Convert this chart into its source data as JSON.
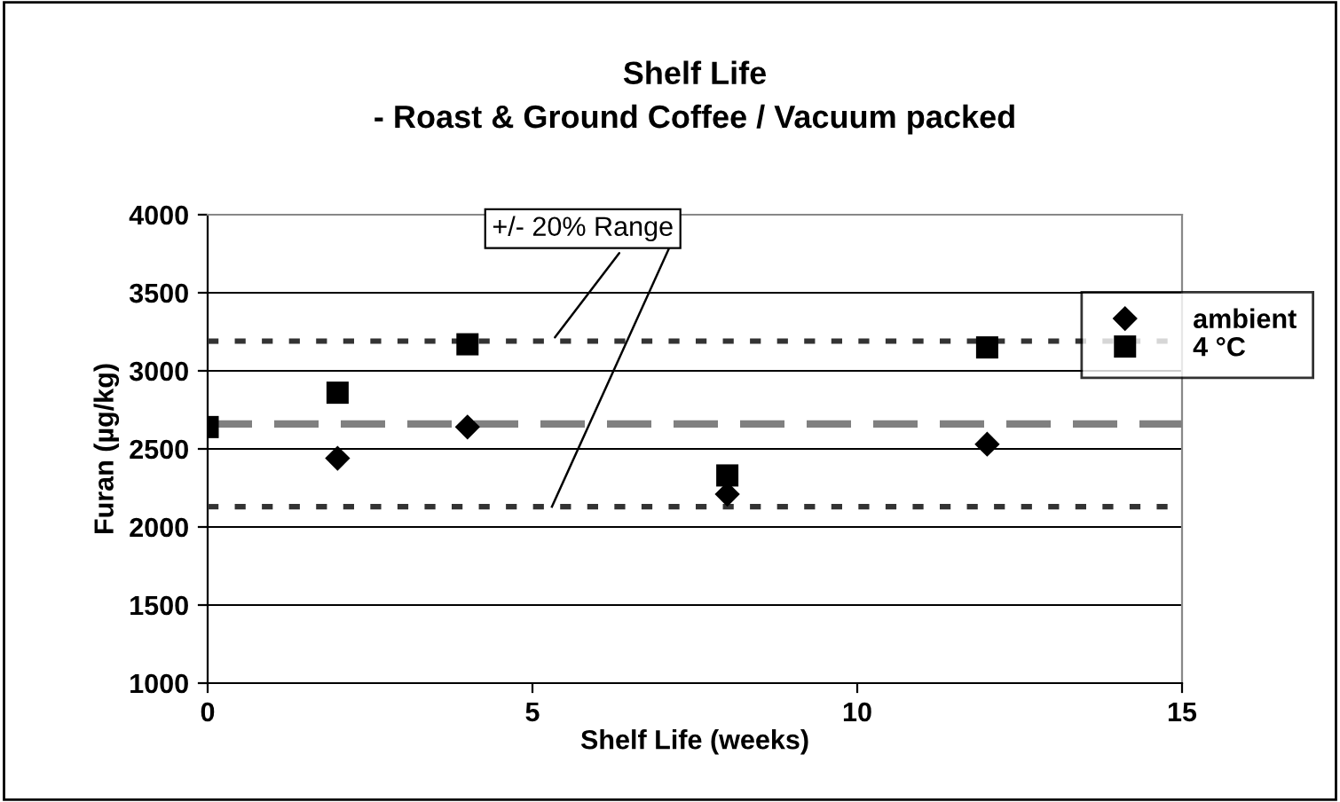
{
  "chart_data": {
    "type": "scatter",
    "title": "Shelf Life\n- Roast & Ground Coffee / Vacuum packed",
    "xlabel": "Shelf Life (weeks)",
    "ylabel": "Furan (µg/kg)",
    "x": [
      0,
      2,
      4,
      8,
      12
    ],
    "series": [
      {
        "name": "ambient",
        "color": "#000000",
        "marker": "diamond",
        "values": [
          null,
          2440,
          2640,
          2210,
          2530
        ]
      },
      {
        "name": "4 °C",
        "color": "#000000",
        "marker": "square",
        "values": [
          2640,
          2860,
          3170,
          2330,
          3150
        ]
      }
    ],
    "ref_lines": [
      {
        "axis": "y",
        "value": 2660,
        "color": "#808080",
        "line_style": "dashed"
      },
      {
        "axis": "y",
        "value": 3190,
        "color": "#333333",
        "line_style": "dotted"
      },
      {
        "axis": "y",
        "value": 2130,
        "color": "#333333",
        "line_style": "dotted"
      }
    ],
    "annotations": [
      {
        "text": "+/- 20% Range",
        "x": 5.3,
        "y": 3190
      }
    ],
    "xlim": [
      0,
      15
    ],
    "xticks": [
      0,
      5,
      10,
      15
    ],
    "ylim": [
      1000,
      4000
    ],
    "yticks": [
      1000,
      1500,
      2000,
      2500,
      3000,
      3500,
      4000
    ],
    "grid": "y",
    "legend": "top right"
  }
}
